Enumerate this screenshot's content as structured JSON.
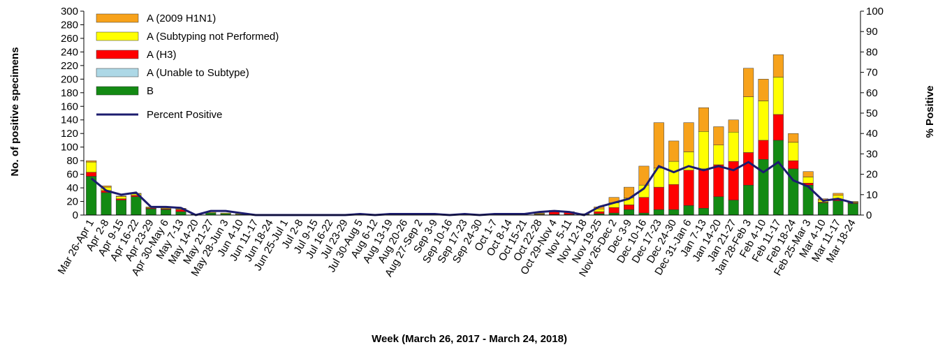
{
  "chart_data": {
    "type": "bar",
    "stacked": true,
    "y_label": "No. of positive specimens",
    "y2_label": "% Positive",
    "x_label": "Week (March 26, 2017 - March 24, 2018)",
    "categories": [
      "Mar 26-Apr 1",
      "Apr 2-8",
      "Apr 9-15",
      "Apr 16-22",
      "Apr 23-29",
      "Apr 30-May 6",
      "May 7-13",
      "May 14-20",
      "May 21-27",
      "May 28-Jun 3",
      "Jun 4-10",
      "Jun 11-17",
      "Jun 18-24",
      "Jun 25-Jul 1",
      "Jul 2-8",
      "Jul 9-15",
      "Jul 16-22",
      "Jul 23-29",
      "Jul 30-Aug 5",
      "Aug 6-12",
      "Aug 13-19",
      "Aug 20-26",
      "Aug 27-Sep 2",
      "Sep 3-9",
      "Sep 10-16",
      "Sep 17-23",
      "Sep 24-30",
      "Oct 1-7",
      "Oct 8-14",
      "Oct 15-21",
      "Oct 22-28",
      "Oct 29-Nov 4",
      "Nov 5-11",
      "Nov 12-18",
      "Nov 19-25",
      "Nov 26-Dec 2",
      "Dec 3-9",
      "Dec 10-16",
      "Dec 17-23",
      "Dec 24-30",
      "Dec 31-Jan 6",
      "Jan 7-13",
      "Jan 14-20",
      "Jan 21-27",
      "Jan 28-Feb 3",
      "Feb 4-10",
      "Feb 11-17",
      "Feb 18-24",
      "Feb 25-Mar 3",
      "Mar 4-10",
      "Mar 11-17",
      "Mar 18-24"
    ],
    "series": [
      {
        "name": "A (2009 H1N1)",
        "color": "#f7a21b",
        "values": [
          2,
          2,
          1,
          1,
          1,
          1,
          1,
          0,
          0,
          0,
          0,
          0,
          0,
          0,
          0,
          0,
          0,
          0,
          0,
          0,
          0,
          0,
          0,
          0,
          0,
          0,
          0,
          0,
          0,
          0,
          1,
          1,
          0,
          0,
          3,
          8,
          16,
          28,
          67,
          30,
          43,
          35,
          27,
          18,
          42,
          32,
          33,
          13,
          8,
          2,
          3,
          1
        ]
      },
      {
        "name": "A (Subtyping not Performed)",
        "color": "#ffff00",
        "values": [
          15,
          5,
          3,
          2,
          1,
          1,
          1,
          0,
          1,
          1,
          1,
          0,
          0,
          0,
          0,
          0,
          0,
          0,
          0,
          0,
          0,
          0,
          0,
          0,
          0,
          0,
          0,
          0,
          0,
          0,
          1,
          1,
          1,
          1,
          4,
          7,
          10,
          18,
          28,
          34,
          27,
          55,
          29,
          43,
          82,
          58,
          55,
          27,
          9,
          3,
          6,
          1
        ]
      },
      {
        "name": "A (H3)",
        "color": "#ff0000",
        "values": [
          6,
          3,
          2,
          2,
          1,
          1,
          3,
          0,
          0,
          0,
          0,
          0,
          0,
          0,
          0,
          0,
          0,
          0,
          0,
          0,
          0,
          0,
          0,
          0,
          0,
          0,
          0,
          0,
          0,
          0,
          1,
          4,
          3,
          0,
          3,
          8,
          7,
          23,
          33,
          37,
          52,
          58,
          47,
          57,
          48,
          28,
          38,
          12,
          3,
          1,
          2,
          1
        ]
      },
      {
        "name": "A (Unable to Subtype)",
        "color": "#add8e6",
        "values": [
          0,
          0,
          0,
          0,
          0,
          0,
          0,
          0,
          0,
          0,
          0,
          0,
          0,
          0,
          0,
          0,
          0,
          0,
          0,
          0,
          0,
          0,
          0,
          0,
          0,
          0,
          0,
          0,
          0,
          0,
          0,
          0,
          0,
          0,
          0,
          0,
          0,
          0,
          0,
          0,
          0,
          0,
          0,
          0,
          0,
          0,
          0,
          0,
          0,
          0,
          0,
          0
        ]
      },
      {
        "name": "B",
        "color": "#138a13",
        "values": [
          57,
          33,
          22,
          27,
          9,
          8,
          5,
          1,
          3,
          2,
          1,
          1,
          0,
          0,
          0,
          0,
          0,
          1,
          0,
          0,
          0,
          0,
          0,
          0,
          0,
          0,
          0,
          0,
          0,
          0,
          0,
          1,
          1,
          1,
          2,
          3,
          8,
          3,
          8,
          8,
          14,
          10,
          27,
          22,
          44,
          82,
          110,
          68,
          44,
          18,
          21,
          17
        ]
      },
      {
        "name": "Percent Positive",
        "color": "#1c1c6e",
        "type": "line",
        "axis": "y2",
        "values": [
          18,
          12,
          10,
          11,
          4,
          4,
          3.5,
          0,
          2,
          2,
          1,
          0,
          0,
          0,
          0,
          0,
          0,
          0,
          0.5,
          0,
          0.5,
          0.5,
          0.5,
          0.5,
          0,
          0.5,
          0,
          0.5,
          0.5,
          0.5,
          1.5,
          2,
          1.5,
          0,
          4,
          6,
          8,
          13,
          24,
          21,
          24,
          22,
          24,
          22,
          26,
          21,
          26,
          17,
          14,
          7,
          8,
          6
        ]
      }
    ],
    "ylim": [
      0,
      300
    ],
    "yticks": [
      0,
      20,
      40,
      60,
      80,
      100,
      120,
      140,
      160,
      180,
      200,
      220,
      240,
      260,
      280,
      300
    ],
    "y2lim": [
      0,
      100
    ],
    "y2ticks": [
      0,
      10,
      20,
      30,
      40,
      50,
      60,
      70,
      80,
      90,
      100
    ],
    "legend": "upper left"
  }
}
